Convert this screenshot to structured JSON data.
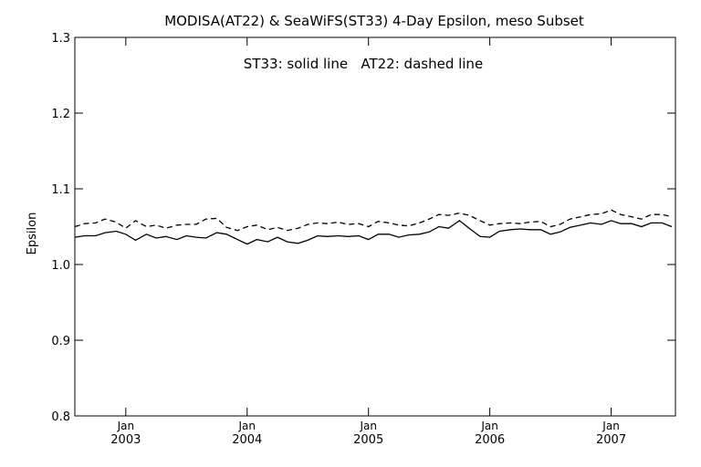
{
  "chart_data": {
    "type": "line",
    "title": "MODISA(AT22) & SeaWiFS(ST33) 4-Day Epsilon, meso Subset",
    "annotation": "ST33: solid line   AT22: dashed line",
    "xlabel": "",
    "ylabel": "Epsilon",
    "xlim": [
      2002.58,
      2007.53
    ],
    "ylim": [
      0.8,
      1.3
    ],
    "y_ticks": [
      "0.8",
      "0.9",
      "1.0",
      "1.1",
      "1.2",
      "1.3"
    ],
    "x_ticks": [
      {
        "x": 2003.0,
        "month": "Jan",
        "year": "2003"
      },
      {
        "x": 2004.0,
        "month": "Jan",
        "year": "2004"
      },
      {
        "x": 2005.0,
        "month": "Jan",
        "year": "2005"
      },
      {
        "x": 2006.0,
        "month": "Jan",
        "year": "2006"
      },
      {
        "x": 2007.0,
        "month": "Jan",
        "year": "2007"
      }
    ],
    "grid": false,
    "series": [
      {
        "name": "ST33",
        "style": "solid",
        "color": "#000000",
        "x": [
          2002.58,
          2002.66,
          2002.75,
          2002.83,
          2002.92,
          2003.0,
          2003.08,
          2003.17,
          2003.25,
          2003.33,
          2003.42,
          2003.5,
          2003.58,
          2003.66,
          2003.75,
          2003.83,
          2003.92,
          2004.0,
          2004.08,
          2004.17,
          2004.25,
          2004.33,
          2004.42,
          2004.5,
          2004.58,
          2004.66,
          2004.75,
          2004.83,
          2004.92,
          2005.0,
          2005.08,
          2005.17,
          2005.25,
          2005.33,
          2005.42,
          2005.5,
          2005.58,
          2005.66,
          2005.75,
          2005.83,
          2005.92,
          2006.0,
          2006.08,
          2006.17,
          2006.25,
          2006.33,
          2006.42,
          2006.5,
          2006.58,
          2006.66,
          2006.75,
          2006.83,
          2006.92,
          2007.0,
          2007.08,
          2007.17,
          2007.25,
          2007.33,
          2007.42,
          2007.5
        ],
        "y": [
          1.036,
          1.038,
          1.038,
          1.042,
          1.044,
          1.04,
          1.032,
          1.04,
          1.035,
          1.037,
          1.033,
          1.038,
          1.036,
          1.035,
          1.042,
          1.04,
          1.033,
          1.027,
          1.033,
          1.03,
          1.036,
          1.03,
          1.028,
          1.032,
          1.038,
          1.037,
          1.038,
          1.037,
          1.038,
          1.033,
          1.04,
          1.04,
          1.036,
          1.039,
          1.04,
          1.043,
          1.05,
          1.048,
          1.058,
          1.048,
          1.037,
          1.036,
          1.044,
          1.046,
          1.047,
          1.046,
          1.046,
          1.04,
          1.043,
          1.049,
          1.052,
          1.055,
          1.053,
          1.058,
          1.054,
          1.054,
          1.05,
          1.055,
          1.055,
          1.05
        ]
      },
      {
        "name": "AT22",
        "style": "dashed",
        "color": "#000000",
        "x": [
          2002.58,
          2002.66,
          2002.75,
          2002.83,
          2002.92,
          2003.0,
          2003.08,
          2003.17,
          2003.25,
          2003.33,
          2003.42,
          2003.5,
          2003.58,
          2003.66,
          2003.75,
          2003.83,
          2003.92,
          2004.0,
          2004.08,
          2004.17,
          2004.25,
          2004.33,
          2004.42,
          2004.5,
          2004.58,
          2004.66,
          2004.75,
          2004.83,
          2004.92,
          2005.0,
          2005.08,
          2005.17,
          2005.25,
          2005.33,
          2005.42,
          2005.5,
          2005.58,
          2005.66,
          2005.75,
          2005.83,
          2005.92,
          2006.0,
          2006.08,
          2006.17,
          2006.25,
          2006.33,
          2006.42,
          2006.5,
          2006.58,
          2006.66,
          2006.75,
          2006.83,
          2006.92,
          2007.0,
          2007.08,
          2007.17,
          2007.25,
          2007.33,
          2007.42,
          2007.5
        ],
        "y": [
          1.05,
          1.054,
          1.055,
          1.06,
          1.056,
          1.048,
          1.058,
          1.05,
          1.052,
          1.048,
          1.052,
          1.053,
          1.053,
          1.06,
          1.061,
          1.049,
          1.045,
          1.05,
          1.052,
          1.046,
          1.049,
          1.045,
          1.048,
          1.053,
          1.055,
          1.054,
          1.056,
          1.053,
          1.054,
          1.05,
          1.057,
          1.055,
          1.052,
          1.051,
          1.055,
          1.06,
          1.066,
          1.065,
          1.068,
          1.065,
          1.058,
          1.052,
          1.054,
          1.055,
          1.054,
          1.056,
          1.057,
          1.05,
          1.053,
          1.06,
          1.063,
          1.066,
          1.067,
          1.072,
          1.066,
          1.063,
          1.06,
          1.066,
          1.066,
          1.063
        ]
      }
    ]
  }
}
